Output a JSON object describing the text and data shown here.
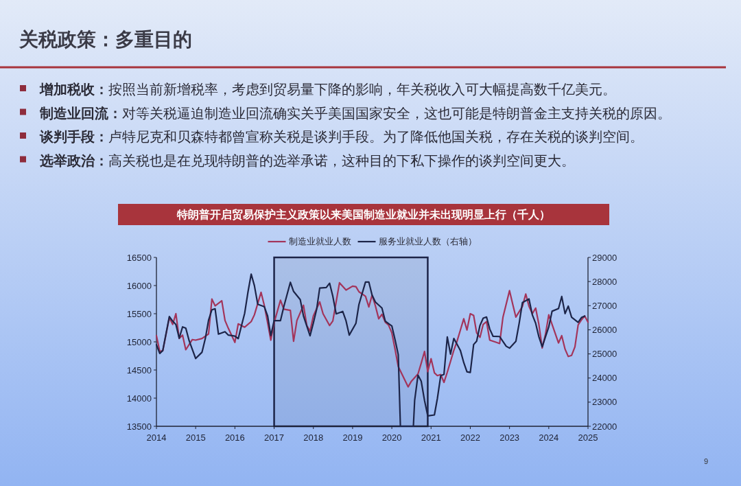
{
  "chart_data": {
    "type": "line",
    "title": "特朗普开启贸易保护主义政策以来美国制造业就业并未出现明显上行（千人）",
    "annotations": [
      "关税政策：多重目的",
      "增加税收：按照当前新增税率，考虑到贸易量下降的影响，年关税收入可大幅提高数千亿美元。",
      "制造业回流：对等关税逼迫制造业回流确实关乎美国国家安全，这也可能是特朗普金主支持关税的原因。",
      "谈判手段：卢特尼克和贝森特都曾宣称关税是谈判手段。为了降低他国关税，存在关税的谈判空间。",
      "选举政治：高关税也是在兑现特朗普的选举承诺，这种目的下私下操作的谈判空间更大。",
      "9"
    ],
    "series": [
      {
        "name": "制造业就业人数",
        "color": "#a3345a",
        "x": [
          "2014-01",
          "2014-02",
          "2014-03",
          "2014-05",
          "2014-06",
          "2014-07",
          "2014-08",
          "2014-09",
          "2014-10",
          "2014-12",
          "2015-01",
          "2015-03",
          "2015-05",
          "2015-06",
          "2015-07",
          "2015-09",
          "2015-10",
          "2015-11",
          "2016-01",
          "2016-02",
          "2016-04",
          "2016-06",
          "2016-07",
          "2016-09",
          "2016-10",
          "2016-11",
          "2016-12",
          "2017-01",
          "2017-03",
          "2017-04",
          "2017-06",
          "2017-07",
          "2017-08",
          "2017-10",
          "2017-11",
          "2017-12",
          "2018-01",
          "2018-03",
          "2018-04",
          "2018-06",
          "2018-07",
          "2018-08",
          "2018-09",
          "2018-11",
          "2019-01",
          "2019-02",
          "2019-03",
          "2019-05",
          "2019-06",
          "2019-07",
          "2019-08",
          "2019-09",
          "2019-10",
          "2019-11",
          "2019-12",
          "2020-01",
          "2020-02",
          "2020-03",
          "2020-06",
          "2020-07",
          "2020-09",
          "2020-10",
          "2020-11",
          "2020-12",
          "2021-01",
          "2021-02",
          "2021-03",
          "2021-04",
          "2021-05",
          "2021-06",
          "2021-08",
          "2021-09",
          "2021-10",
          "2021-11",
          "2021-12",
          "2022-01",
          "2022-02",
          "2022-03",
          "2022-04",
          "2022-05",
          "2022-06",
          "2022-07",
          "2022-09",
          "2022-10",
          "2022-11",
          "2023-01",
          "2023-02",
          "2023-03",
          "2023-05",
          "2023-06",
          "2023-07",
          "2023-08",
          "2023-09",
          "2023-10",
          "2023-11",
          "2023-12",
          "2024-01",
          "2024-02",
          "2024-04",
          "2024-05",
          "2024-06",
          "2024-07",
          "2024-08",
          "2024-09",
          "2024-10",
          "2024-11",
          "2024-12",
          "2025-01"
        ],
        "values": [
          15110,
          14830,
          14840,
          15430,
          15310,
          15500,
          15060,
          15120,
          14860,
          15040,
          15030,
          15060,
          15140,
          15760,
          15640,
          15730,
          15380,
          15240,
          14990,
          15320,
          15260,
          15360,
          15480,
          15880,
          15650,
          15340,
          15030,
          15340,
          15740,
          15580,
          15560,
          15010,
          15380,
          15650,
          15290,
          15190,
          15460,
          15710,
          15500,
          15290,
          15370,
          15710,
          16050,
          15920,
          15990,
          15980,
          15890,
          15810,
          15620,
          15830,
          15640,
          15410,
          15490,
          15350,
          15300,
          15160,
          14860,
          14560,
          14200,
          14300,
          14430,
          14620,
          14830,
          14470,
          14700,
          14450,
          14400,
          14420,
          14280,
          14460,
          14850,
          15020,
          15210,
          15410,
          15210,
          15500,
          15470,
          15160,
          15080,
          15310,
          15360,
          15030,
          14990,
          14970,
          15440,
          15910,
          15660,
          15440,
          15630,
          15850,
          15630,
          15500,
          15600,
          15310,
          14890,
          15130,
          15480,
          15310,
          14980,
          15110,
          14870,
          14740,
          14760,
          14910,
          15300,
          15390,
          15460,
          15350
        ]
      },
      {
        "name": "服务业就业人数（右轴）",
        "color": "#1c2448",
        "axis": "y2",
        "x": [
          "2014-01",
          "2014-02",
          "2014-03",
          "2014-05",
          "2014-06",
          "2014-07",
          "2014-08",
          "2014-09",
          "2014-10",
          "2014-11",
          "2015-01",
          "2015-03",
          "2015-04",
          "2015-05",
          "2015-06",
          "2015-07",
          "2015-08",
          "2015-10",
          "2015-11",
          "2016-01",
          "2016-02",
          "2016-03",
          "2016-04",
          "2016-05",
          "2016-06",
          "2016-07",
          "2016-08",
          "2016-10",
          "2016-11",
          "2016-12",
          "2017-01",
          "2017-03",
          "2017-04",
          "2017-06",
          "2017-07",
          "2017-09",
          "2017-10",
          "2017-12",
          "2018-01",
          "2018-02",
          "2018-03",
          "2018-05",
          "2018-06",
          "2018-07",
          "2018-08",
          "2018-10",
          "2018-11",
          "2018-12",
          "2019-02",
          "2019-03",
          "2019-05",
          "2019-06",
          "2019-07",
          "2019-08",
          "2019-10",
          "2019-11",
          "2019-12",
          "2020-01",
          "2020-02",
          "2020-03",
          "2020-03-21",
          "2020-07-20",
          "2020-08",
          "2020-09",
          "2020-10",
          "2020-11",
          "2020-12",
          "2021-02",
          "2021-03",
          "2021-04",
          "2021-05",
          "2021-06",
          "2021-07",
          "2021-08",
          "2021-10",
          "2021-11",
          "2021-12",
          "2022-01",
          "2022-02",
          "2022-03",
          "2022-04",
          "2022-05",
          "2022-06",
          "2022-07",
          "2022-08",
          "2022-10",
          "2022-12",
          "2023-01",
          "2023-03",
          "2023-04",
          "2023-05",
          "2023-07",
          "2023-08",
          "2023-09",
          "2023-10",
          "2023-11",
          "2024-01",
          "2024-02",
          "2024-04",
          "2024-05",
          "2024-06",
          "2024-07",
          "2024-08",
          "2024-10",
          "2024-11",
          "2024-12"
        ],
        "values": [
          25380,
          25020,
          25140,
          26550,
          26360,
          26220,
          25650,
          26120,
          26070,
          25550,
          24810,
          25070,
          25640,
          26400,
          26830,
          26870,
          25820,
          25920,
          25780,
          25740,
          25630,
          26150,
          26680,
          27540,
          28310,
          27830,
          27060,
          26960,
          26580,
          25760,
          26380,
          26380,
          26960,
          27970,
          27590,
          27250,
          26570,
          25750,
          26280,
          26860,
          27730,
          27750,
          27930,
          27390,
          26660,
          26760,
          26370,
          25780,
          26270,
          27050,
          27980,
          27980,
          27440,
          27150,
          26900,
          26360,
          26260,
          26160,
          25570,
          24970,
          22000,
          22000,
          23080,
          24120,
          23870,
          23070,
          22430,
          22470,
          23160,
          24100,
          24150,
          25700,
          24990,
          25640,
          25140,
          24640,
          24260,
          24230,
          25390,
          25530,
          26180,
          26480,
          26530,
          26030,
          25730,
          25720,
          25320,
          25240,
          25520,
          26280,
          27130,
          27280,
          26620,
          26270,
          25710,
          25300,
          26120,
          26770,
          26880,
          27380,
          26670,
          26980,
          26520,
          26310,
          26510,
          26570
        ]
      }
    ],
    "xlim": [
      "2014",
      "2025"
    ],
    "xticks": [
      "2014",
      "2015",
      "2016",
      "2017",
      "2018",
      "2019",
      "2020",
      "2021",
      "2022",
      "2023",
      "2024",
      "2025"
    ],
    "ylim": [
      13500,
      16500
    ],
    "yticks": [
      13500,
      14000,
      14500,
      15000,
      15500,
      16000,
      16500
    ],
    "y2lim": [
      22000,
      29000
    ],
    "y2ticks": [
      22000,
      23000,
      24000,
      25000,
      26000,
      27000,
      28000,
      29000
    ],
    "bands": [
      {
        "axis": "x",
        "from": "2017-01",
        "to": "2020-12",
        "color": "#1c2448"
      }
    ],
    "legend": "top",
    "line_style": "solid"
  }
}
